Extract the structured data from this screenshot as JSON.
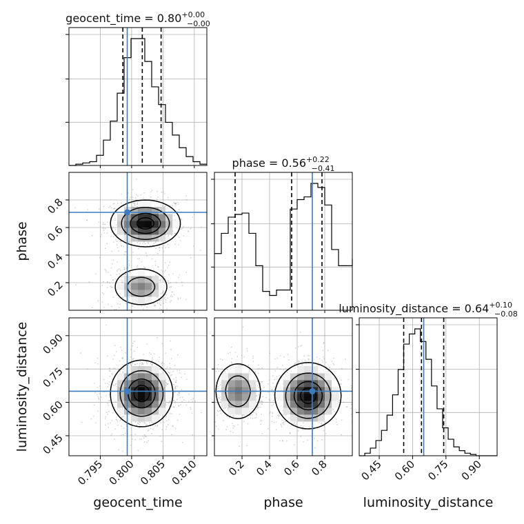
{
  "chart_data": {
    "type": "corner",
    "parameters": [
      {
        "name": "geocent_time",
        "range": [
          0.79,
          0.812
        ],
        "ticks": [
          0.795,
          0.8,
          0.805,
          0.81
        ],
        "tick_labels": [
          "0.795",
          "0.800",
          "0.805",
          "0.810"
        ],
        "median": 0.8017,
        "quantiles": [
          0.7986,
          0.8017,
          0.8047
        ],
        "truth": 0.7993,
        "title": {
          "main": "geocent_time = 0.80",
          "plus": "+0.00",
          "minus": "−0.00"
        },
        "hist_left": 0.79,
        "hist_step": 0.0011,
        "hist_values": [
          0.0,
          0.01,
          0.02,
          0.03,
          0.08,
          0.2,
          0.35,
          0.57,
          0.85,
          1.0,
          1.0,
          0.82,
          0.62,
          0.48,
          0.34,
          0.24,
          0.14,
          0.07,
          0.03,
          0.01
        ]
      },
      {
        "name": "phase",
        "range": [
          0.0,
          1.0
        ],
        "ticks": [
          0.2,
          0.4,
          0.6,
          0.8
        ],
        "tick_labels": [
          "0.2",
          "0.4",
          "0.6",
          "0.8"
        ],
        "median": 0.56,
        "quantiles": [
          0.15,
          0.56,
          0.78
        ],
        "truth": 0.71,
        "title": {
          "main": "phase = 0.56",
          "plus": "+0.22",
          "minus": "−0.41"
        },
        "hist_left": 0.0,
        "hist_step": 0.05,
        "hist_values": [
          0.42,
          0.57,
          0.69,
          0.71,
          0.72,
          0.57,
          0.33,
          0.14,
          0.11,
          0.15,
          0.15,
          0.75,
          0.82,
          0.84,
          0.94,
          0.91,
          0.78,
          0.45,
          0.33,
          0.33,
          0.38
        ]
      },
      {
        "name": "luminosity_distance",
        "range": [
          0.36,
          0.98
        ],
        "ticks": [
          0.45,
          0.6,
          0.75,
          0.9
        ],
        "tick_labels": [
          "0.45",
          "0.60",
          "0.75",
          "0.90"
        ],
        "median": 0.64,
        "quantiles": [
          0.56,
          0.64,
          0.74
        ],
        "truth": 0.65,
        "title": {
          "main": "luminosity_distance = 0.64",
          "plus": "+0.10",
          "minus": "−0.08"
        },
        "hist_left": 0.36,
        "hist_step": 0.025,
        "hist_values": [
          0.0,
          0.02,
          0.06,
          0.12,
          0.2,
          0.32,
          0.48,
          0.68,
          0.88,
          0.96,
          1.0,
          0.9,
          0.76,
          0.55,
          0.37,
          0.22,
          0.13,
          0.07,
          0.04,
          0.02,
          0.01,
          0.0,
          0.0,
          0.0,
          0.0
        ]
      }
    ],
    "pairs": [
      {
        "row": 1,
        "col": 0,
        "blobs": [
          {
            "cx": 0.8022,
            "cy": 0.63,
            "sx": 0.0028,
            "sy": 0.085,
            "w": 1.0
          },
          {
            "cx": 0.8015,
            "cy": 0.17,
            "sx": 0.0024,
            "sy": 0.075,
            "w": 0.6
          }
        ]
      },
      {
        "row": 2,
        "col": 0,
        "blobs": [
          {
            "cx": 0.8016,
            "cy": 0.64,
            "sx": 0.0025,
            "sy": 0.075,
            "w": 1.0
          }
        ]
      },
      {
        "row": 2,
        "col": 1,
        "blobs": [
          {
            "cx": 0.17,
            "cy": 0.65,
            "sx": 0.09,
            "sy": 0.07,
            "w": 0.65
          },
          {
            "cx": 0.68,
            "cy": 0.63,
            "sx": 0.12,
            "sy": 0.075,
            "w": 1.0
          }
        ]
      }
    ]
  }
}
